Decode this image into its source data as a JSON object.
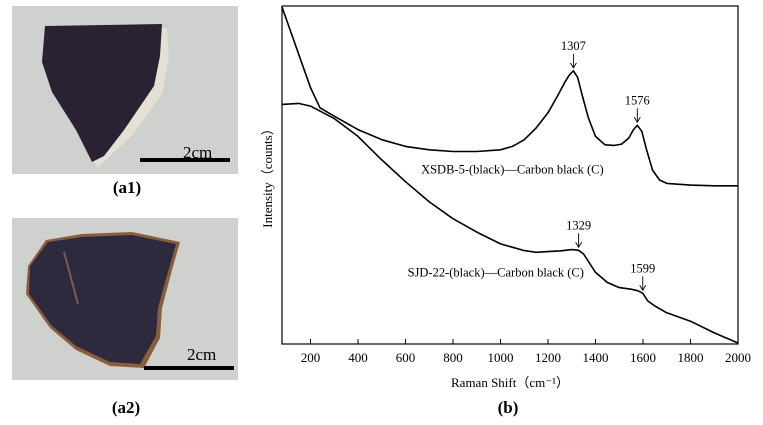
{
  "photos": [
    {
      "label": "(a1)",
      "scale_text": "2cm"
    },
    {
      "label": "(a2)",
      "scale_text": "2cm"
    }
  ],
  "chart": {
    "panel_label": "(b)",
    "colors": {
      "line": "#000000",
      "photo_bg": "#cfd1ce",
      "sherd_a1": "#2a2233",
      "sherd_a2": "#2e2a3e"
    }
  },
  "chart_data": {
    "type": "line",
    "xlabel": "Raman Shift（cm⁻¹）",
    "ylabel": "Intensity（counts）",
    "xlim": [
      80,
      2000
    ],
    "xticks": [
      200,
      400,
      600,
      800,
      1000,
      1200,
      1400,
      1600,
      1800,
      2000
    ],
    "y_ticks_shown": false,
    "series": [
      {
        "name": "XSDB-5-(black)—Carbon black (C)",
        "x": [
          80,
          120,
          160,
          200,
          240,
          300,
          400,
          500,
          600,
          700,
          800,
          900,
          1000,
          1050,
          1100,
          1150,
          1200,
          1240,
          1270,
          1290,
          1307,
          1325,
          1345,
          1370,
          1400,
          1440,
          1480,
          1510,
          1540,
          1560,
          1576,
          1595,
          1615,
          1640,
          1670,
          1700,
          1800,
          1900,
          2000
        ],
        "y": [
          100,
          92,
          84,
          76,
          70,
          67.5,
          63.5,
          60.5,
          58.5,
          57.5,
          57,
          57,
          57.5,
          58.5,
          60.5,
          64,
          68.5,
          73.5,
          77.5,
          79.8,
          81,
          79,
          73.5,
          67,
          61.5,
          59,
          58.8,
          59.2,
          61,
          63.5,
          64.8,
          63,
          57.5,
          51.5,
          48.5,
          47.5,
          47,
          46.8,
          46.8
        ]
      },
      {
        "name": "SJD-22-(black)—Carbon black (C)",
        "x": [
          80,
          150,
          200,
          300,
          400,
          500,
          600,
          700,
          800,
          900,
          1000,
          1100,
          1150,
          1200,
          1250,
          1300,
          1329,
          1350,
          1400,
          1450,
          1500,
          1550,
          1580,
          1599,
          1620,
          1650,
          1700,
          1800,
          1900,
          2000
        ],
        "y": [
          71,
          71.3,
          70.5,
          66.8,
          61.5,
          54.5,
          48,
          42,
          37,
          33,
          29.5,
          27.5,
          27,
          27.2,
          27.4,
          27.8,
          27.6,
          26.5,
          21,
          18,
          16.5,
          16,
          15.5,
          14.8,
          12.5,
          11,
          9,
          6.5,
          3,
          0
        ]
      }
    ],
    "annotations": [
      {
        "text": "1307",
        "x": 1307,
        "series": 0
      },
      {
        "text": "1576",
        "x": 1576,
        "series": 0
      },
      {
        "text": "1329",
        "x": 1329,
        "series": 1
      },
      {
        "text": "1599",
        "x": 1599,
        "series": 1
      }
    ]
  }
}
